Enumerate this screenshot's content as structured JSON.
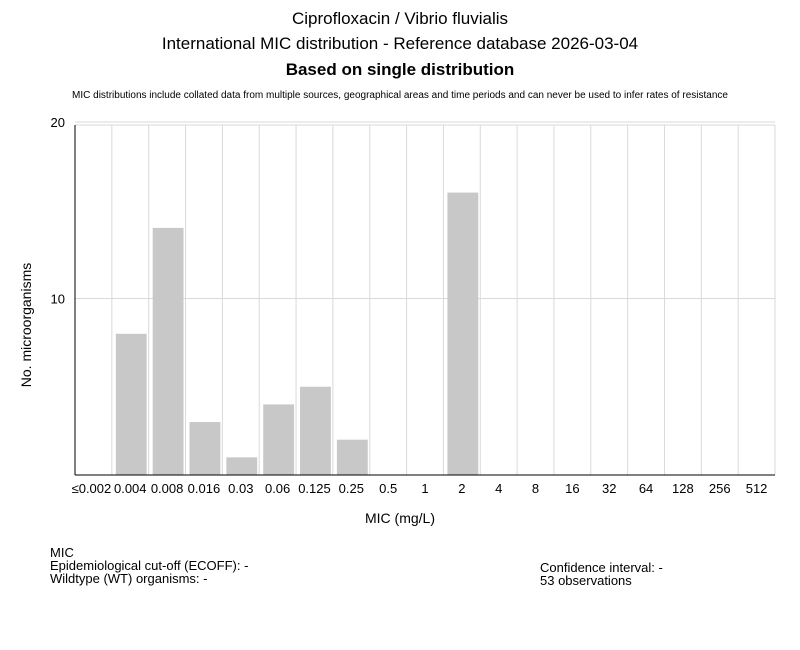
{
  "title": "Ciprofloxacin / Vibrio fluvialis",
  "subtitle": "International MIC distribution - Reference database 2026-03-04",
  "subtitle2": "Based on single distribution",
  "note": "MIC distributions include collated data from multiple sources, geographical areas and time periods and can never be used to infer rates of resistance",
  "footer": {
    "mic_label": "MIC",
    "ecoff": "Epidemiological cut-off (ECOFF): -",
    "wildtype": "Wildtype (WT) organisms:  -",
    "confidence": "Confidence interval: -",
    "observations": "53 observations"
  },
  "colors": {
    "bar": "#c8c8c8",
    "grid": "#d9d9d9",
    "axis": "#000000"
  },
  "chart_data": {
    "type": "bar",
    "categories": [
      "≤0.002",
      "0.004",
      "0.008",
      "0.016",
      "0.03",
      "0.06",
      "0.125",
      "0.25",
      "0.5",
      "1",
      "2",
      "4",
      "8",
      "16",
      "32",
      "64",
      "128",
      "256",
      "512"
    ],
    "values": [
      0,
      8,
      14,
      3,
      1,
      4,
      5,
      2,
      0,
      0,
      16,
      0,
      0,
      0,
      0,
      0,
      0,
      0,
      0
    ],
    "xlabel": "MIC (mg/L)",
    "ylabel": "No. microorganisms",
    "ylim": [
      0,
      20
    ],
    "yticks": [
      10,
      20
    ],
    "grid": true
  }
}
